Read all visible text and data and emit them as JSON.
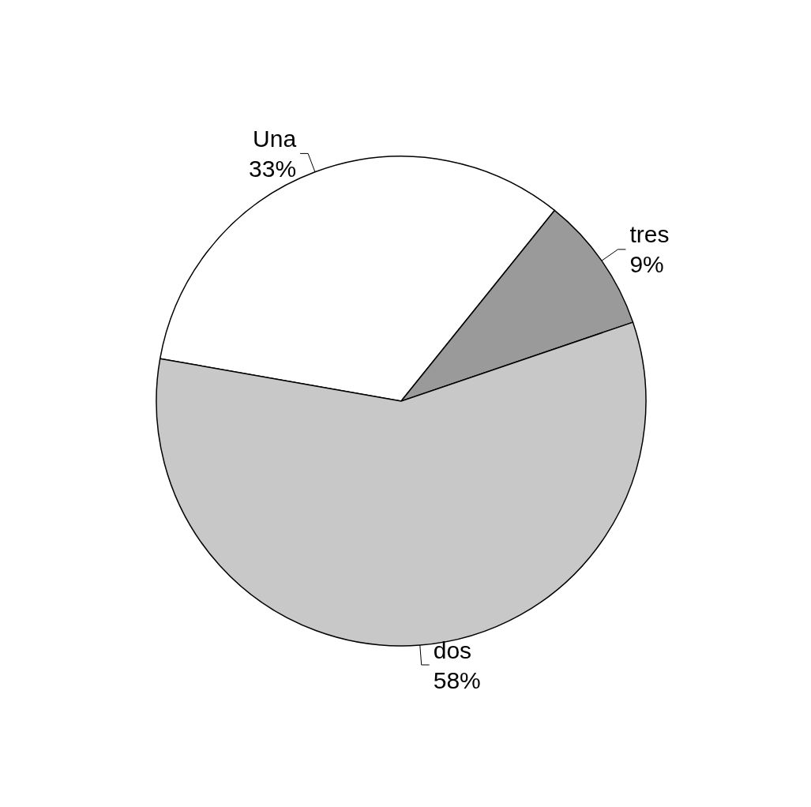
{
  "chart_data": {
    "type": "pie",
    "categories": [
      "Una",
      "tres",
      "dos"
    ],
    "values": [
      33,
      9,
      58
    ],
    "colors": [
      "#ffffff",
      "#9a9a9a",
      "#c8c8c8"
    ],
    "value_labels": [
      "33%",
      "9%",
      "58%"
    ]
  }
}
